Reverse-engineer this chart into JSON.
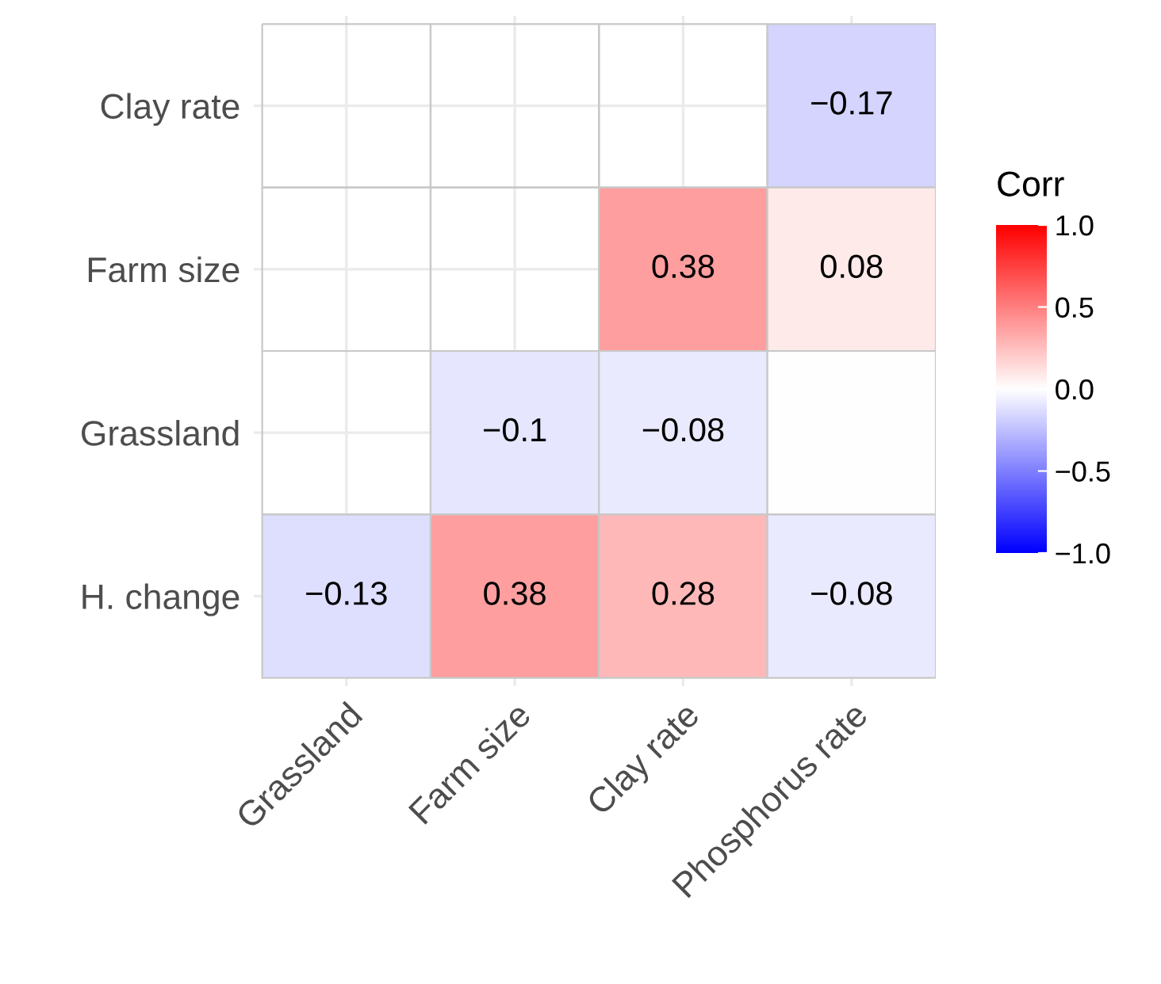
{
  "chart_data": {
    "type": "heatmap",
    "categories": [
      "Grassland",
      "Farm size",
      "Clay rate",
      "Phosphorus rate"
    ],
    "y_categories": [
      "Clay rate",
      "Farm size",
      "Grassland",
      "H. change"
    ],
    "cells": [
      [
        null,
        null,
        null,
        -0.17
      ],
      [
        null,
        null,
        0.38,
        0.08
      ],
      [
        null,
        -0.1,
        -0.08,
        0
      ],
      [
        -0.13,
        0.38,
        0.28,
        -0.08
      ]
    ],
    "cell_labels": [
      [
        null,
        null,
        null,
        "−0.17"
      ],
      [
        null,
        null,
        "0.38",
        "0.08"
      ],
      [
        null,
        "−0.1",
        "−0.08",
        null
      ],
      [
        "−0.13",
        "0.38",
        "0.28",
        "−0.08"
      ]
    ],
    "clabel": "Corr",
    "clim": [
      -1,
      1
    ],
    "cticks": [
      {
        "value": -1,
        "label": "−1.0"
      },
      {
        "value": -0.5,
        "label": "−0.5"
      },
      {
        "value": 0,
        "label": "0.0"
      },
      {
        "value": 0.5,
        "label": "0.5"
      },
      {
        "value": 1,
        "label": "1.0"
      }
    ],
    "grid": true
  }
}
